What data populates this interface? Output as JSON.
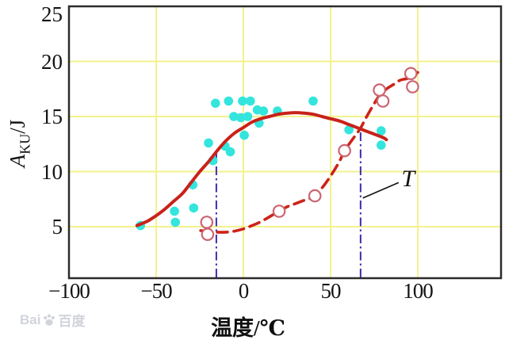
{
  "watermark": {
    "prefix": "Bai",
    "suffix": "百度"
  },
  "chart_data": {
    "type": "scatter",
    "title": "",
    "xlabel": "温度/℃",
    "ylabel": "AKU/J",
    "ylabel_parts": {
      "symbol": "A",
      "subscript": "KU",
      "unit": "/J"
    },
    "xlim": [
      -100,
      148
    ],
    "ylim": [
      0,
      25
    ],
    "grid": true,
    "legend": "none",
    "grid_color": "#F2F28C",
    "frame_color": "#2B2B2B",
    "x_ticks": [
      {
        "value": -100,
        "label": "−100",
        "gridline": false
      },
      {
        "value": -50,
        "label": "−50",
        "gridline": true
      },
      {
        "value": 0,
        "label": "0",
        "gridline": true
      },
      {
        "value": 50,
        "label": "50",
        "gridline": true
      },
      {
        "value": 100,
        "label": "100",
        "gridline": true
      }
    ],
    "y_ticks": [
      {
        "value": 25,
        "label": "25",
        "gridline": false
      },
      {
        "value": 20,
        "label": "20",
        "gridline": true
      },
      {
        "value": 15,
        "label": "15",
        "gridline": true
      },
      {
        "value": 10,
        "label": "10",
        "gridline": true
      },
      {
        "value": 5,
        "label": "5",
        "gridline": true
      }
    ],
    "series": [
      {
        "id": "lower-band-fit-dashed",
        "name": "lower-bound fit curve (dashed red)",
        "type": "line",
        "style": "dashed",
        "color": "#CD2318",
        "width": 3.6,
        "dash": "13 8",
        "points": [
          [
            -24.5,
            4.65
          ],
          [
            -20,
            4.55
          ],
          [
            -15,
            4.5
          ],
          [
            -10,
            4.5
          ],
          [
            -5,
            4.6
          ],
          [
            0,
            4.8
          ],
          [
            5,
            5.1
          ],
          [
            10,
            5.45
          ],
          [
            15,
            5.9
          ],
          [
            20,
            6.35
          ],
          [
            25,
            6.8
          ],
          [
            30,
            7.1
          ],
          [
            35,
            7.4
          ],
          [
            40,
            7.7
          ],
          [
            45,
            8.5
          ],
          [
            50,
            9.6
          ],
          [
            55,
            10.9
          ],
          [
            58,
            11.9
          ],
          [
            62,
            12.8
          ],
          [
            67,
            13.9
          ],
          [
            70,
            14.8
          ],
          [
            74,
            15.9
          ],
          [
            78,
            16.9
          ],
          [
            82,
            17.5
          ],
          [
            86,
            17.9
          ],
          [
            90,
            18.3
          ],
          [
            95,
            18.5
          ],
          [
            100,
            19.0
          ]
        ]
      },
      {
        "id": "open-circle-points",
        "name": "low impact-energy data (open circles)",
        "type": "scatter",
        "marker": "open-circle",
        "stroke": "#CB6570",
        "stroke_width": 2.2,
        "fill": "#FFFFFF",
        "marker_radius": 7.2,
        "points": [
          [
            -21,
            5.4
          ],
          [
            -20.5,
            4.3
          ],
          [
            20.5,
            6.4
          ],
          [
            41,
            7.8
          ],
          [
            58,
            11.9
          ],
          [
            78,
            17.4
          ],
          [
            80,
            16.4
          ],
          [
            96,
            18.9
          ],
          [
            97,
            17.7
          ]
        ]
      },
      {
        "id": "cyan-dot-points",
        "name": "impact-energy data (filled cyan dots)",
        "type": "scatter",
        "marker": "filled-circle",
        "fill": "#33E5DD",
        "marker_radius": 5.8,
        "points": [
          [
            -59,
            5.1
          ],
          [
            -39.5,
            6.4
          ],
          [
            -39,
            5.4
          ],
          [
            -29,
            8.8
          ],
          [
            -28.5,
            6.7
          ],
          [
            -20,
            12.6
          ],
          [
            -17.5,
            11.0
          ],
          [
            -16,
            16.2
          ],
          [
            -10.5,
            12.3
          ],
          [
            -8.5,
            16.4
          ],
          [
            -7.5,
            11.8
          ],
          [
            -5.5,
            15.0
          ],
          [
            -1.5,
            14.9
          ],
          [
            -0.5,
            16.4
          ],
          [
            0.5,
            13.3
          ],
          [
            2.5,
            15.0
          ],
          [
            4,
            16.4
          ],
          [
            8,
            15.6
          ],
          [
            9,
            14.4
          ],
          [
            11.5,
            15.5
          ],
          [
            19.5,
            15.5
          ],
          [
            40,
            16.4
          ],
          [
            60.5,
            13.8
          ],
          [
            79,
            13.7
          ],
          [
            79,
            12.4
          ]
        ]
      },
      {
        "id": "upper-band-fit-solid",
        "name": "mean impact-energy fit curve (solid red)",
        "type": "line",
        "style": "solid",
        "color": "#C8221A",
        "width": 4,
        "points": [
          [
            -61,
            5.1
          ],
          [
            -55,
            5.5
          ],
          [
            -50,
            6.0
          ],
          [
            -45,
            6.6
          ],
          [
            -40,
            7.3
          ],
          [
            -35,
            8.0
          ],
          [
            -30,
            9.0
          ],
          [
            -25,
            10.0
          ],
          [
            -20,
            10.9
          ],
          [
            -15,
            11.9
          ],
          [
            -10,
            12.8
          ],
          [
            -5,
            13.5
          ],
          [
            0,
            14.0
          ],
          [
            5,
            14.5
          ],
          [
            10,
            14.8
          ],
          [
            15,
            15.0
          ],
          [
            20,
            15.2
          ],
          [
            25,
            15.3
          ],
          [
            30,
            15.35
          ],
          [
            35,
            15.3
          ],
          [
            40,
            15.2
          ],
          [
            45,
            15.0
          ],
          [
            50,
            14.8
          ],
          [
            55,
            14.6
          ],
          [
            60,
            14.3
          ],
          [
            65,
            14.0
          ],
          [
            70,
            13.7
          ],
          [
            75,
            13.4
          ],
          [
            80,
            13.1
          ],
          [
            82,
            12.9
          ]
        ]
      }
    ],
    "reference_lines": [
      {
        "id": "refline-lower-temp",
        "x": -15.5,
        "y_top": 11.95,
        "color": "#3E2CAD",
        "style": "dash-dot"
      },
      {
        "id": "refline-upper-temp",
        "x": 67.2,
        "y_top": 13.9,
        "color": "#3E2CAD",
        "style": "dash-dot"
      }
    ],
    "annotation": {
      "text": "T",
      "label_pos": [
        94.5,
        9.3
      ],
      "leader": [
        [
          68.5,
          7.6
        ],
        [
          89,
          9.0
        ]
      ],
      "leader_color": "#111111"
    }
  }
}
